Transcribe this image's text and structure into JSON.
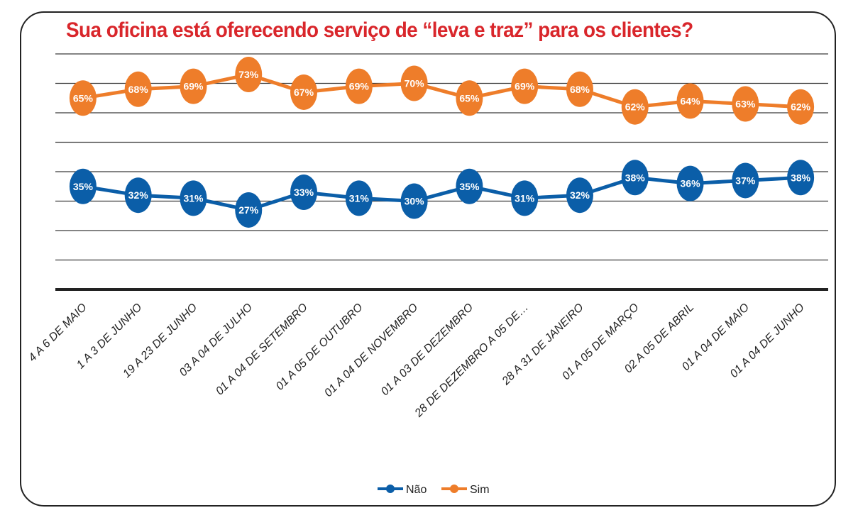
{
  "chart_data": {
    "type": "line",
    "title": "Sua oficina está oferecendo serviço de “leva e traz” para os clientes?",
    "categories": [
      "4 A 6 DE MAIO",
      "1 A 3 DE JUNHO",
      "19 A 23 DE JUNHO",
      "03 A 04 DE JULHO",
      "01 A 04 DE SETEMBRO",
      "01 A 05 DE OUTUBRO",
      "01 A 04 DE NOVEMBRO",
      "01 A 03 DE DEZEMBRO",
      "28 DE DEZEMBRO A 05 DE…",
      "28 A 31 DE JANEIRO",
      "01 A 05 DE MARÇO",
      "02 A 05 DE ABRIL",
      "01 A 04 DE MAIO",
      "01 A 04 DE JUNHO"
    ],
    "series": [
      {
        "name": "Não",
        "color": "#0b5ea8",
        "values": [
          35,
          32,
          31,
          27,
          33,
          31,
          30,
          35,
          31,
          32,
          38,
          36,
          37,
          38
        ]
      },
      {
        "name": "Sim",
        "color": "#ee7d2a",
        "values": [
          65,
          68,
          69,
          73,
          67,
          69,
          70,
          65,
          69,
          68,
          62,
          64,
          63,
          62
        ]
      }
    ],
    "value_suffix": "%",
    "ylim": [
      0,
      80
    ],
    "grid": true,
    "legend": "bottom"
  }
}
